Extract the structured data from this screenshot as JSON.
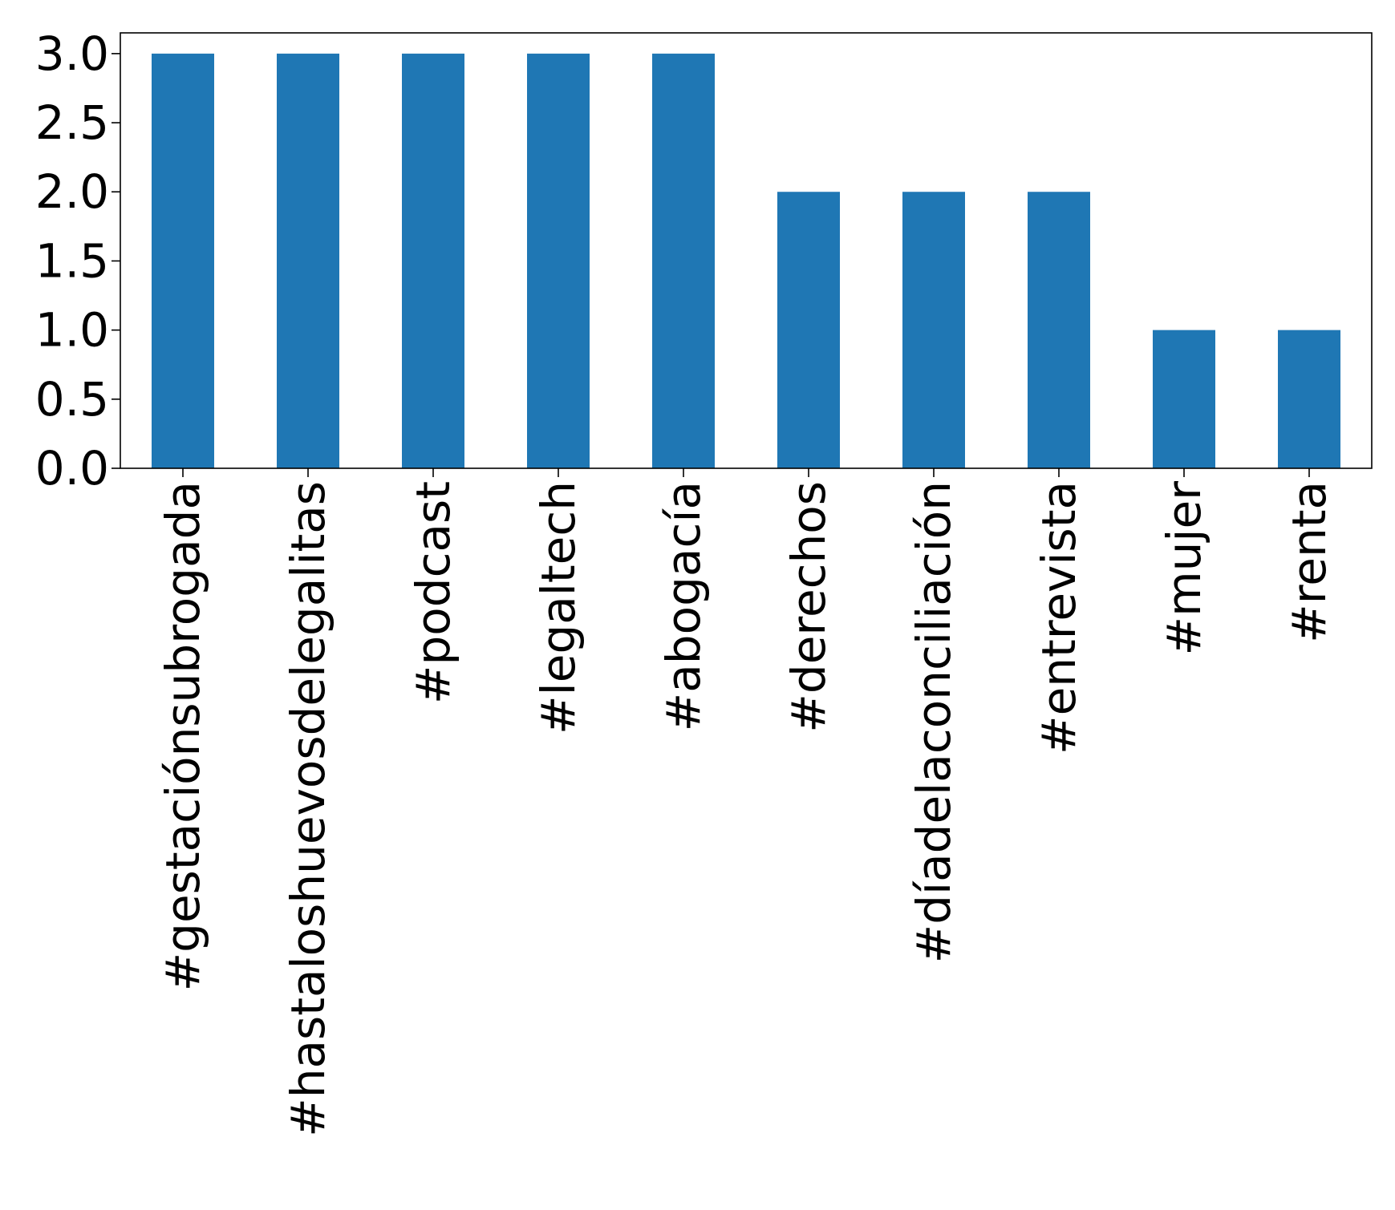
{
  "chart_data": {
    "type": "bar",
    "title": "",
    "xlabel": "",
    "ylabel": "",
    "categories": [
      "#gestaciónsubrogada",
      "#hastaloshuevosdelegalitas",
      "#podcast",
      "#legaltech",
      "#abogacía",
      "#derechos",
      "#díadelaconciliación",
      "#entrevista",
      "#mujer",
      "#renta"
    ],
    "values": [
      3,
      3,
      3,
      3,
      3,
      2,
      2,
      2,
      1,
      1
    ],
    "ylim": [
      0,
      3.15
    ],
    "yticks": [
      "0.0",
      "0.5",
      "1.0",
      "1.5",
      "2.0",
      "2.5",
      "3.0"
    ],
    "grid": false,
    "legend": "none",
    "bar_color": "#1f77b4"
  }
}
